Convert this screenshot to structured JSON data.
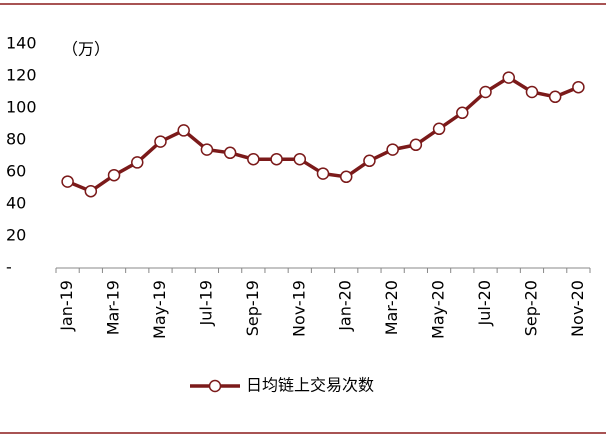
{
  "chart_data": {
    "type": "line",
    "unit_label": "（万）",
    "categories": [
      "Jan-19",
      null,
      "Mar-19",
      null,
      "May-19",
      null,
      "Jul-19",
      null,
      "Sep-19",
      null,
      "Nov-19",
      null,
      "Jan-20",
      null,
      "Mar-20",
      null,
      "May-20",
      null,
      "Jul-20",
      null,
      "Sep-20",
      null,
      "Nov-20"
    ],
    "series": [
      {
        "name": "日均链上交易次数",
        "color": "#7b1a1a",
        "values": [
          54,
          48,
          58,
          66,
          79,
          86,
          74,
          72,
          68,
          68,
          68,
          59,
          57,
          67,
          74,
          77,
          87,
          97,
          110,
          119,
          110,
          107,
          113
        ]
      }
    ],
    "ylim": [
      0,
      140
    ],
    "yticks": [
      {
        "value": 0,
        "label": "-"
      },
      20,
      40,
      60,
      80,
      100,
      120,
      140
    ],
    "legend": "bottom"
  }
}
